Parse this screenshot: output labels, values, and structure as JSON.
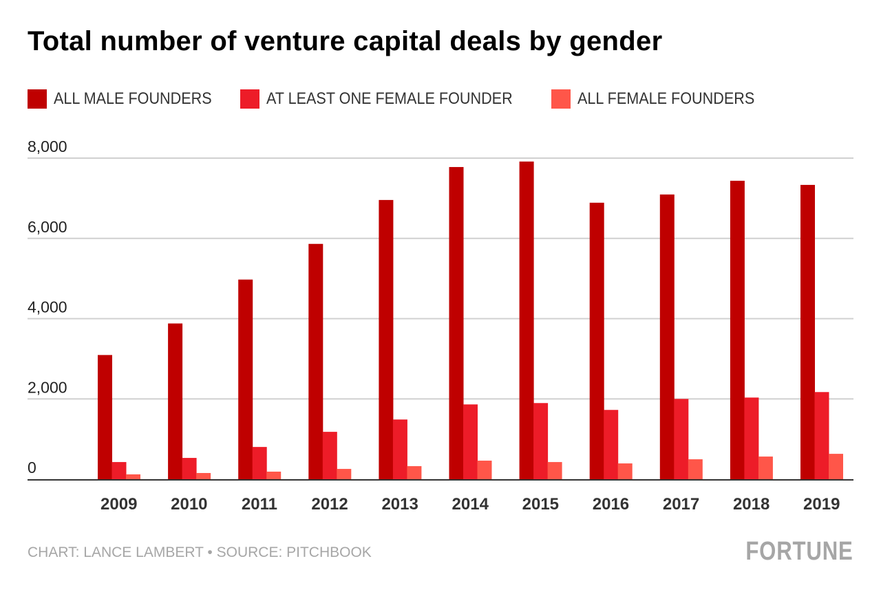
{
  "chart_data": {
    "type": "bar",
    "title": "Total number of venture capital deals by gender",
    "xlabel": "",
    "ylabel": "",
    "categories": [
      "2009",
      "2010",
      "2011",
      "2012",
      "2013",
      "2014",
      "2015",
      "2016",
      "2017",
      "2018",
      "2019"
    ],
    "series": [
      {
        "name": "ALL MALE FOUNDERS",
        "color": "#bf0000",
        "values": [
          3094,
          3880,
          4974,
          5863,
          6957,
          7778,
          7915,
          6889,
          7094,
          7436,
          7333
        ]
      },
      {
        "name": "AT LEAST ONE FEMALE FOUNDER",
        "color": "#ed1c28",
        "values": [
          427,
          530,
          803,
          1180,
          1487,
          1863,
          1897,
          1726,
          2000,
          2034,
          2171
        ]
      },
      {
        "name": "ALL FEMALE FOUNDERS",
        "color": "#ff5649",
        "values": [
          120,
          154,
          188,
          256,
          325,
          462,
          427,
          393,
          496,
          564,
          632
        ]
      }
    ],
    "ylim": [
      0,
      8000
    ],
    "yticks": [
      0,
      2000,
      4000,
      6000,
      8000
    ],
    "ytick_labels": [
      "0",
      "2,000",
      "4,000",
      "6,000",
      "8,000"
    ],
    "grid": true,
    "legend_position": "top-left"
  },
  "footer": {
    "credit": "CHART: LANCE LAMBERT • SOURCE: PITCHBOOK",
    "logo": "FORTUNE"
  }
}
